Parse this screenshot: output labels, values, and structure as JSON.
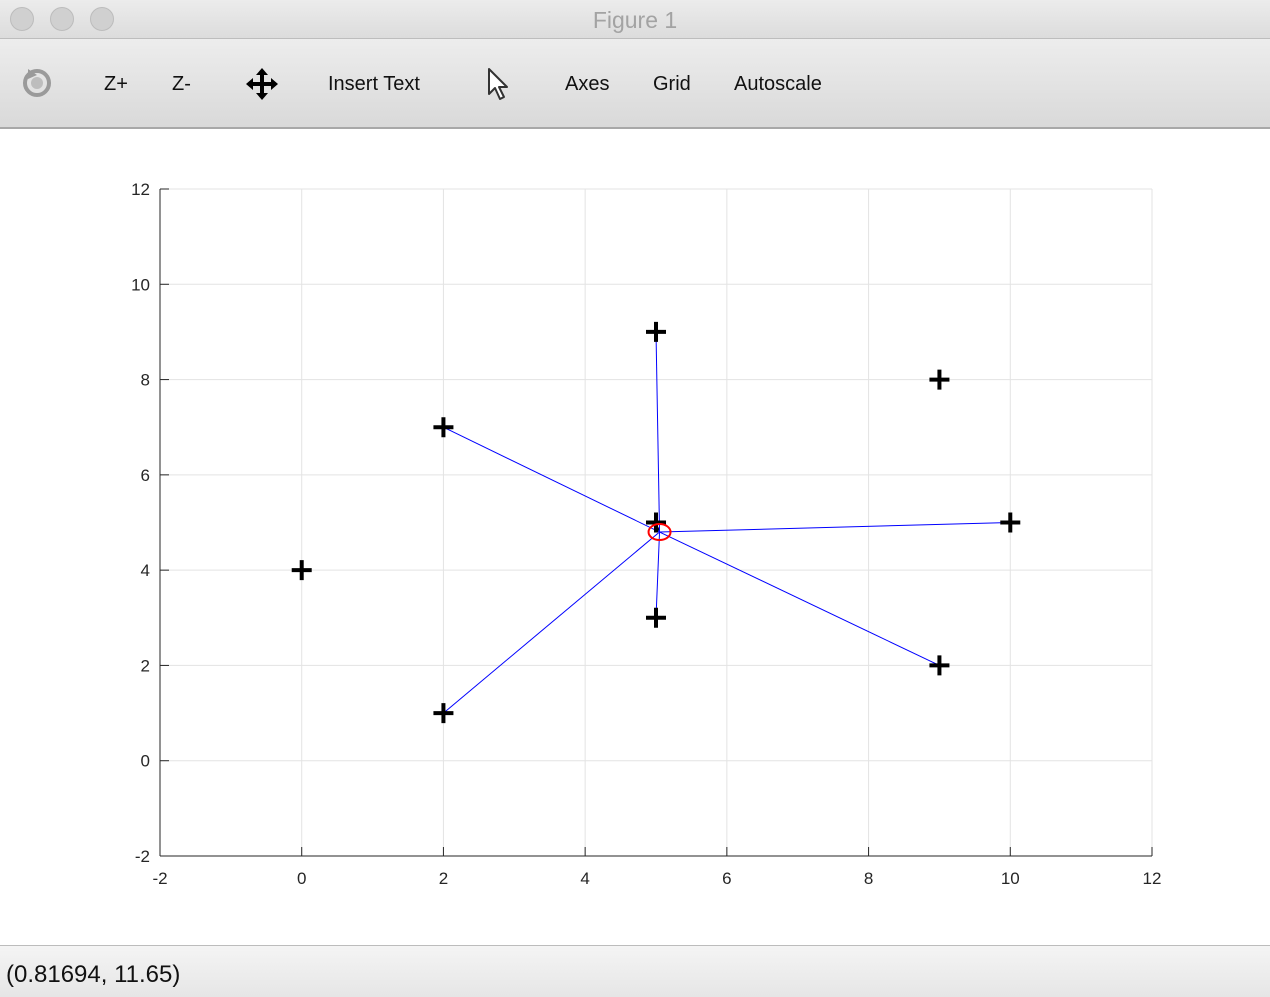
{
  "window": {
    "title": "Figure 1"
  },
  "toolbar": {
    "rotate_icon": "rotate-icon",
    "zoom_in_label": "Z+",
    "zoom_out_label": "Z-",
    "pan_icon": "pan-arrows-icon",
    "insert_text_label": "Insert Text",
    "select_icon": "pointer-arrow-icon",
    "axes_label": "Axes",
    "grid_label": "Grid",
    "autoscale_label": "Autoscale"
  },
  "status": {
    "coordinates": "(0.81694, 11.65)"
  },
  "colors": {
    "markers": "#000000",
    "lines": "#0000ff",
    "center": "#ff0000",
    "grid": "#e3e3e3"
  },
  "chart_data": {
    "type": "scatter",
    "xlim": [
      -2,
      12
    ],
    "ylim": [
      -2,
      12
    ],
    "x_ticks": [
      "-2",
      "0",
      "2",
      "4",
      "6",
      "8",
      "10",
      "12"
    ],
    "y_ticks": [
      "-2",
      "0",
      "2",
      "4",
      "6",
      "8",
      "10",
      "12"
    ],
    "grid": true,
    "points": [
      {
        "x": 0,
        "y": 4
      },
      {
        "x": 2,
        "y": 7
      },
      {
        "x": 2,
        "y": 1
      },
      {
        "x": 5,
        "y": 9
      },
      {
        "x": 5,
        "y": 5
      },
      {
        "x": 5,
        "y": 3
      },
      {
        "x": 9,
        "y": 8
      },
      {
        "x": 9,
        "y": 2
      },
      {
        "x": 10,
        "y": 5
      }
    ],
    "center": {
      "x": 5.05,
      "y": 4.8
    },
    "connected_points": [
      {
        "x": 2,
        "y": 7
      },
      {
        "x": 2,
        "y": 1
      },
      {
        "x": 5,
        "y": 9
      },
      {
        "x": 5,
        "y": 5
      },
      {
        "x": 5,
        "y": 3
      },
      {
        "x": 9,
        "y": 2
      },
      {
        "x": 10,
        "y": 5
      }
    ]
  }
}
